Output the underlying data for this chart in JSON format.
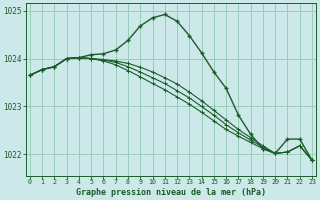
{
  "bg_color": "#cce8e8",
  "grid_color": "#99ccbb",
  "line_color": "#1a5c2a",
  "tick_color": "#1a5c2a",
  "xlabel": "Graphe pression niveau de la mer (hPa)",
  "xlim": [
    -0.3,
    23.3
  ],
  "ylim": [
    1021.55,
    1025.15
  ],
  "yticks": [
    1022,
    1023,
    1024,
    1025
  ],
  "xticks": [
    0,
    1,
    2,
    3,
    4,
    5,
    6,
    7,
    8,
    9,
    10,
    11,
    12,
    13,
    14,
    15,
    16,
    17,
    18,
    19,
    20,
    21,
    22,
    23
  ],
  "series": [
    [
      1023.65,
      1023.77,
      1023.83,
      1024.0,
      1024.02,
      1024.08,
      1024.1,
      1024.18,
      1024.38,
      1024.68,
      1024.85,
      1024.92,
      1024.78,
      1024.48,
      1024.12,
      1023.72,
      1023.38,
      1022.82,
      1022.42,
      1022.12,
      1022.02,
      1022.32,
      1022.32,
      1021.88
    ],
    [
      1023.65,
      1023.77,
      1023.83,
      1024.0,
      1024.02,
      1024.0,
      1023.95,
      1023.87,
      1023.75,
      1023.62,
      1023.48,
      1023.35,
      1023.2,
      1023.05,
      1022.88,
      1022.7,
      1022.52,
      1022.38,
      1022.25,
      1022.12,
      1022.02,
      1022.05,
      1022.18,
      1021.88
    ],
    [
      1023.65,
      1023.77,
      1023.83,
      1024.0,
      1024.02,
      1024.0,
      1023.97,
      1023.92,
      1023.83,
      1023.72,
      1023.6,
      1023.48,
      1023.33,
      1023.18,
      1023.0,
      1022.82,
      1022.62,
      1022.45,
      1022.3,
      1022.15,
      1022.02,
      1022.05,
      1022.18,
      1021.88
    ],
    [
      1023.65,
      1023.77,
      1023.83,
      1024.0,
      1024.02,
      1024.0,
      1023.98,
      1023.95,
      1023.9,
      1023.82,
      1023.72,
      1023.6,
      1023.47,
      1023.3,
      1023.12,
      1022.92,
      1022.72,
      1022.52,
      1022.35,
      1022.18,
      1022.02,
      1022.05,
      1022.18,
      1021.88
    ]
  ]
}
